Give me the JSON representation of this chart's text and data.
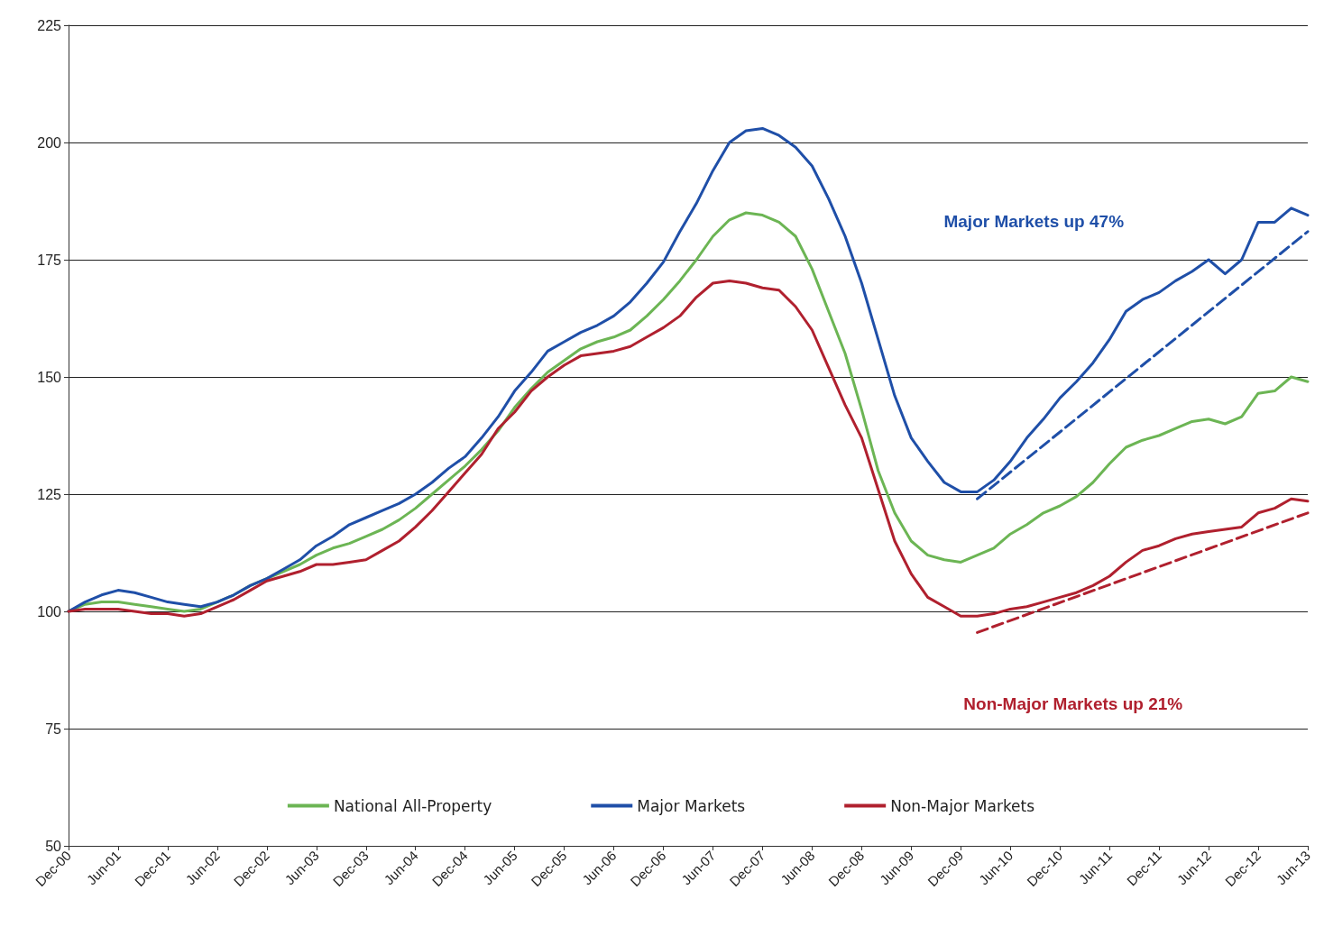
{
  "chart_data": {
    "type": "line",
    "categories": [
      "Dec-00",
      null,
      null,
      "Jun-01",
      null,
      null,
      "Dec-01",
      null,
      null,
      "Jun-02",
      null,
      null,
      "Dec-02",
      null,
      null,
      "Jun-03",
      null,
      null,
      "Dec-03",
      null,
      null,
      "Jun-04",
      null,
      null,
      "Dec-04",
      null,
      null,
      "Jun-05",
      null,
      null,
      "Dec-05",
      null,
      null,
      "Jun-06",
      null,
      null,
      "Dec-06",
      null,
      null,
      "Jun-07",
      null,
      null,
      "Dec-07",
      null,
      null,
      "Jun-08",
      null,
      null,
      "Dec-08",
      null,
      null,
      "Jun-09",
      null,
      null,
      "Dec-09",
      null,
      null,
      "Jun-10",
      null,
      null,
      "Dec-10",
      null,
      null,
      "Jun-11",
      null,
      null,
      "Dec-11",
      null,
      null,
      "Jun-12",
      null,
      null,
      "Dec-12",
      null,
      null,
      "Jun-13"
    ],
    "series": [
      {
        "name": "National All-Property",
        "color": "#6cb554",
        "values": [
          100,
          101.5,
          102,
          102,
          101.5,
          101,
          100.5,
          100,
          100.5,
          102,
          103.5,
          105.5,
          107,
          108.5,
          110,
          112,
          113.5,
          114.5,
          116,
          117.5,
          119.5,
          122,
          125,
          128,
          131,
          134.5,
          138.5,
          143.5,
          147.5,
          151,
          153.5,
          156,
          157.5,
          158.5,
          160,
          163,
          166.5,
          170.5,
          175,
          180,
          183.5,
          185,
          184.5,
          183,
          180,
          173,
          164,
          155,
          143,
          130,
          121,
          115,
          112,
          111,
          110.5,
          112,
          113.5,
          116.5,
          118.5,
          121,
          122.5,
          124.5,
          127.5,
          131.5,
          135,
          136.5,
          137.5,
          139,
          140.5,
          141,
          140,
          141.5,
          146.5,
          147,
          150,
          149
        ]
      },
      {
        "name": "Major Markets",
        "color": "#1f4fa8",
        "values": [
          100,
          102,
          103.5,
          104.5,
          104,
          103,
          102,
          101.5,
          101,
          102,
          103.5,
          105.5,
          107,
          109,
          111,
          114,
          116,
          118.5,
          120,
          121.5,
          123,
          125,
          127.5,
          130.5,
          133,
          137,
          141.5,
          147,
          151,
          155.5,
          157.5,
          159.5,
          161,
          163,
          166,
          170,
          174.5,
          181,
          187,
          194,
          200,
          202.5,
          203,
          201.5,
          199,
          195,
          188,
          180,
          170,
          158,
          146,
          137,
          132,
          127.5,
          125.5,
          125.5,
          128,
          132,
          137,
          141,
          145.5,
          149,
          153,
          158,
          164,
          166.5,
          168,
          170.5,
          172.5,
          175,
          172,
          175,
          183,
          183,
          186,
          184.5
        ]
      },
      {
        "name": "Non-Major Markets",
        "color": "#b0202e",
        "values": [
          100,
          100.5,
          100.5,
          100.5,
          100,
          99.5,
          99.5,
          99,
          99.5,
          101,
          102.5,
          104.5,
          106.5,
          107.5,
          108.5,
          110,
          110,
          110.5,
          111,
          113,
          115,
          118,
          121.5,
          125.5,
          129.5,
          133.5,
          139,
          142.5,
          147,
          150,
          152.5,
          154.5,
          155,
          155.5,
          156.5,
          158.5,
          160.5,
          163,
          167,
          170,
          170.5,
          170,
          169,
          168.5,
          165,
          160,
          152,
          144,
          137,
          126,
          115,
          108,
          103,
          101,
          99,
          99,
          99.5,
          100.5,
          101,
          102,
          103,
          104,
          105.5,
          107.5,
          110.5,
          113,
          114,
          115.5,
          116.5,
          117,
          117.5,
          118,
          121,
          122,
          124,
          123.5
        ]
      },
      {
        "color": "#1f4fa8",
        "line_style": "dashed",
        "values": [
          null,
          null,
          null,
          null,
          null,
          null,
          null,
          null,
          null,
          null,
          null,
          null,
          null,
          null,
          null,
          null,
          null,
          null,
          null,
          null,
          null,
          null,
          null,
          null,
          null,
          null,
          null,
          null,
          null,
          null,
          null,
          null,
          null,
          null,
          null,
          null,
          null,
          null,
          null,
          null,
          null,
          null,
          null,
          null,
          null,
          null,
          null,
          null,
          null,
          null,
          null,
          null,
          null,
          null,
          null,
          124,
          null,
          null,
          null,
          null,
          null,
          null,
          null,
          null,
          null,
          null,
          null,
          null,
          null,
          null,
          null,
          null,
          null,
          null,
          null,
          181
        ]
      },
      {
        "color": "#b0202e",
        "line_style": "dashed",
        "values": [
          null,
          null,
          null,
          null,
          null,
          null,
          null,
          null,
          null,
          null,
          null,
          null,
          null,
          null,
          null,
          null,
          null,
          null,
          null,
          null,
          null,
          null,
          null,
          null,
          null,
          null,
          null,
          null,
          null,
          null,
          null,
          null,
          null,
          null,
          null,
          null,
          null,
          null,
          null,
          null,
          null,
          null,
          null,
          null,
          null,
          null,
          null,
          null,
          null,
          null,
          null,
          null,
          null,
          null,
          null,
          95.5,
          null,
          null,
          null,
          null,
          null,
          null,
          null,
          null,
          null,
          null,
          null,
          null,
          null,
          null,
          null,
          null,
          null,
          null,
          null,
          121
        ]
      }
    ],
    "ylim": [
      50,
      225
    ],
    "yticks": [
      50,
      75,
      100,
      125,
      150,
      175,
      200,
      225
    ],
    "grid": "y",
    "legend": "bottom",
    "marker": "none",
    "line_style": "solid",
    "annotations": [
      "Major Markets up 47%",
      "Non-Major Markets up 21%"
    ]
  }
}
